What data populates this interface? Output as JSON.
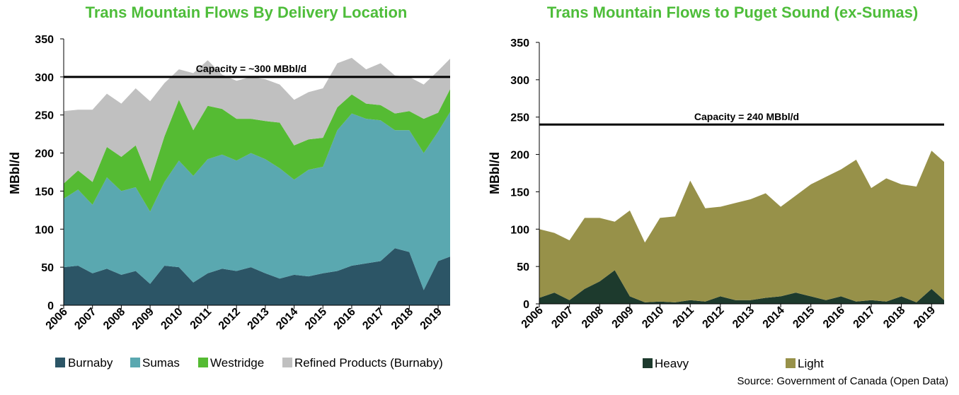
{
  "colors": {
    "title": "#4ebd3a",
    "burnaby": "#2c5566",
    "sumas": "#5aa8b0",
    "westridge": "#55bb33",
    "refined": "#c0c0c0",
    "heavy": "#1d3a2d",
    "light": "#979149"
  },
  "source": "Source: Government of Canada (Open Data)",
  "chart_data": [
    {
      "type": "area",
      "stacked": true,
      "title": "Trans Mountain Flows By Delivery Location",
      "ylabel": "MBbl/d",
      "xlabel": "",
      "ylim": [
        0,
        350
      ],
      "yticks": [
        "0",
        "50",
        "100",
        "150",
        "200",
        "250",
        "300",
        "350"
      ],
      "xticks": [
        "2006",
        "2007",
        "2008",
        "2009",
        "2010",
        "2011",
        "2012",
        "2013",
        "2014",
        "2015",
        "2016",
        "2017",
        "2018",
        "2019"
      ],
      "x": [
        "2006-01",
        "2006-07",
        "2007-01",
        "2007-07",
        "2008-01",
        "2008-07",
        "2009-01",
        "2009-07",
        "2010-01",
        "2010-07",
        "2011-01",
        "2011-07",
        "2012-01",
        "2012-07",
        "2013-01",
        "2013-07",
        "2014-01",
        "2014-07",
        "2015-01",
        "2015-07",
        "2016-01",
        "2016-07",
        "2017-01",
        "2017-07",
        "2018-01",
        "2018-07",
        "2019-01",
        "2019-06"
      ],
      "series": [
        {
          "name": "Burnaby",
          "values": [
            50,
            52,
            42,
            48,
            40,
            45,
            28,
            52,
            50,
            30,
            42,
            48,
            45,
            50,
            42,
            35,
            40,
            38,
            42,
            45,
            52,
            55,
            58,
            75,
            70,
            20,
            58,
            64
          ]
        },
        {
          "name": "Sumas",
          "values": [
            90,
            100,
            90,
            120,
            110,
            110,
            95,
            110,
            140,
            140,
            150,
            150,
            145,
            150,
            150,
            145,
            125,
            140,
            140,
            185,
            200,
            190,
            185,
            155,
            160,
            180,
            170,
            190
          ]
        },
        {
          "name": "Westridge",
          "values": [
            20,
            25,
            30,
            40,
            45,
            55,
            40,
            60,
            80,
            60,
            70,
            60,
            55,
            45,
            50,
            60,
            45,
            40,
            38,
            30,
            25,
            20,
            20,
            22,
            25,
            45,
            25,
            30
          ]
        },
        {
          "name": "Refined Products (Burnaby)",
          "values": [
            95,
            80,
            95,
            70,
            70,
            75,
            105,
            70,
            40,
            75,
            60,
            45,
            50,
            55,
            55,
            50,
            60,
            62,
            65,
            58,
            48,
            45,
            55,
            50,
            45,
            45,
            55,
            40
          ]
        }
      ],
      "annotations": [
        {
          "text": "Capacity = ~300 MBbl/d",
          "y": 300
        }
      ],
      "legend": "bottom"
    },
    {
      "type": "area",
      "stacked": true,
      "title": "Trans Mountain Flows to Puget Sound (ex-Sumas)",
      "ylabel": "MBbl/d",
      "xlabel": "",
      "ylim": [
        0,
        350
      ],
      "yticks": [
        "0",
        "50",
        "100",
        "150",
        "200",
        "250",
        "300",
        "350"
      ],
      "xticks": [
        "2006",
        "2007",
        "2008",
        "2009",
        "2010",
        "2011",
        "2012",
        "2013",
        "2014",
        "2015",
        "2016",
        "2017",
        "2018",
        "2019"
      ],
      "x": [
        "2006-01",
        "2006-07",
        "2007-01",
        "2007-07",
        "2008-01",
        "2008-07",
        "2009-01",
        "2009-07",
        "2010-01",
        "2010-07",
        "2011-01",
        "2011-07",
        "2012-01",
        "2012-07",
        "2013-01",
        "2013-07",
        "2014-01",
        "2014-07",
        "2015-01",
        "2015-07",
        "2016-01",
        "2016-07",
        "2017-01",
        "2017-07",
        "2018-01",
        "2018-07",
        "2019-01",
        "2019-06"
      ],
      "series": [
        {
          "name": "Heavy",
          "values": [
            8,
            15,
            5,
            20,
            30,
            45,
            10,
            2,
            3,
            2,
            5,
            3,
            10,
            5,
            5,
            8,
            10,
            15,
            10,
            5,
            10,
            3,
            5,
            3,
            10,
            2,
            20,
            5
          ]
        },
        {
          "name": "Light",
          "values": [
            92,
            80,
            80,
            95,
            85,
            65,
            115,
            80,
            112,
            115,
            160,
            125,
            120,
            130,
            135,
            140,
            120,
            130,
            150,
            165,
            170,
            190,
            150,
            165,
            150,
            155,
            185,
            185
          ]
        }
      ],
      "annotations": [
        {
          "text": "Capacity = 240 MBbl/d",
          "y": 240
        }
      ],
      "legend": "bottom"
    }
  ]
}
